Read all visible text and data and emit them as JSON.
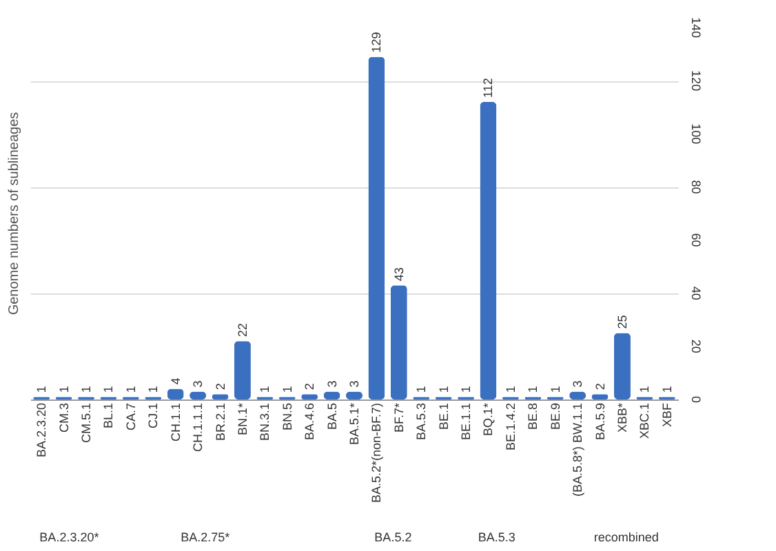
{
  "chart_data": {
    "type": "bar",
    "ylabel": "Genome numbers of sublineages",
    "categories": [
      "BA.2.3.20",
      "CM.3",
      "CM.5.1",
      "BL.1",
      "CA.7",
      "CJ.1",
      "CH.1.1",
      "CH.1.1.1",
      "BR.2.1",
      "BN.1*",
      "BN.3.1",
      "BN.5",
      "BA.4.6",
      "BA.5",
      "BA.5.1*",
      "BA.5.2*(non-BF.7)",
      "BF.7*",
      "BA.5.3",
      "BE.1",
      "BE.1.1",
      "BQ.1*",
      "BE.1.4.2",
      "BE.8",
      "BE.9",
      "(BA.5.8*) BW.1.1",
      "BA.5.9",
      "XBB*",
      "XBC.1",
      "XBF"
    ],
    "values": [
      1,
      1,
      1,
      1,
      1,
      1,
      4,
      3,
      2,
      22,
      1,
      1,
      2,
      3,
      3,
      129,
      43,
      1,
      1,
      1,
      112,
      1,
      1,
      1,
      3,
      2,
      25,
      1,
      1
    ],
    "color": "#3b6fc0",
    "data_labels": true,
    "ylim": [
      0,
      140
    ],
    "yticks": [
      0,
      20,
      40,
      60,
      80,
      100,
      120,
      140
    ],
    "grid": "y",
    "annotations": [
      "BA.2.3.20*",
      "BA.2.75*",
      "BA.5.2",
      "BA.5.3",
      "recombined"
    ]
  }
}
